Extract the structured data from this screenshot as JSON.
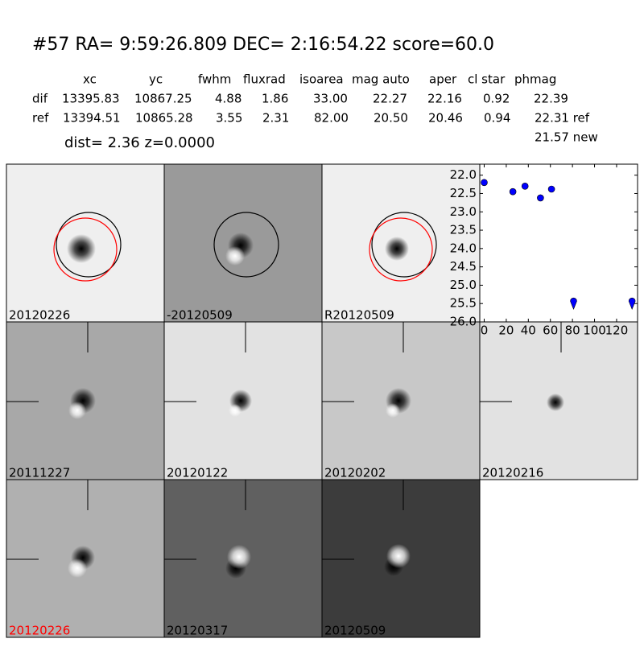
{
  "header": {
    "title": "#57   RA= 9:59:26.809 DEC= 2:16:54.22       score=60.0"
  },
  "table": {
    "columns": [
      "xc",
      "yc",
      "fwhm",
      "fluxrad",
      "isoarea",
      "mag auto",
      "aper",
      "cl star",
      "phmag"
    ],
    "rows": [
      [
        "dif",
        "13395.83",
        "10867.25",
        "4.88",
        "1.86",
        "33.00",
        "22.27",
        "22.16",
        "0.92",
        "22.39"
      ],
      [
        "ref",
        "13394.51",
        "10865.28",
        "3.55",
        "2.31",
        "82.00",
        "20.50",
        "20.46",
        "0.94",
        "22.31 ref"
      ]
    ],
    "note": "21.57 new"
  },
  "dist": "dist=  2.36      z=0.0000",
  "panels": [
    {
      "label": "20120226"
    },
    {
      "label": "-20120509"
    },
    {
      "label": "R20120509"
    },
    {
      "label": "20111227"
    },
    {
      "label": "20120122"
    },
    {
      "label": "20120202"
    },
    {
      "label": "20120216"
    },
    {
      "label": "20120226",
      "label_color": "#ff0000"
    },
    {
      "label": "20120317"
    },
    {
      "label": "20120509"
    }
  ],
  "chart_data": {
    "type": "scatter",
    "series": [
      {
        "color": "#0000ff",
        "x": [
          0,
          26,
          37,
          51,
          61
        ],
        "values": [
          22.2,
          22.45,
          22.3,
          22.62,
          22.38
        ]
      },
      {
        "color": "#0000ff",
        "x": [
          81,
          134
        ],
        "values": [
          25.5,
          25.5
        ],
        "marker": "limit"
      }
    ],
    "xlim": [
      -4,
      139
    ],
    "ylim": [
      21.7,
      26.0
    ],
    "y_inverted": true,
    "xticks": [
      0,
      20,
      40,
      60,
      80,
      100,
      120
    ],
    "yticks": [
      {
        "value": 22,
        "label": "22.0"
      },
      22.5,
      {
        "value": 23,
        "label": "23.0"
      },
      23.5,
      {
        "value": 24,
        "label": "24.0"
      },
      24.5,
      {
        "value": 25,
        "label": "25.0"
      },
      25.5,
      {
        "value": 26,
        "label": "26.0"
      }
    ]
  }
}
